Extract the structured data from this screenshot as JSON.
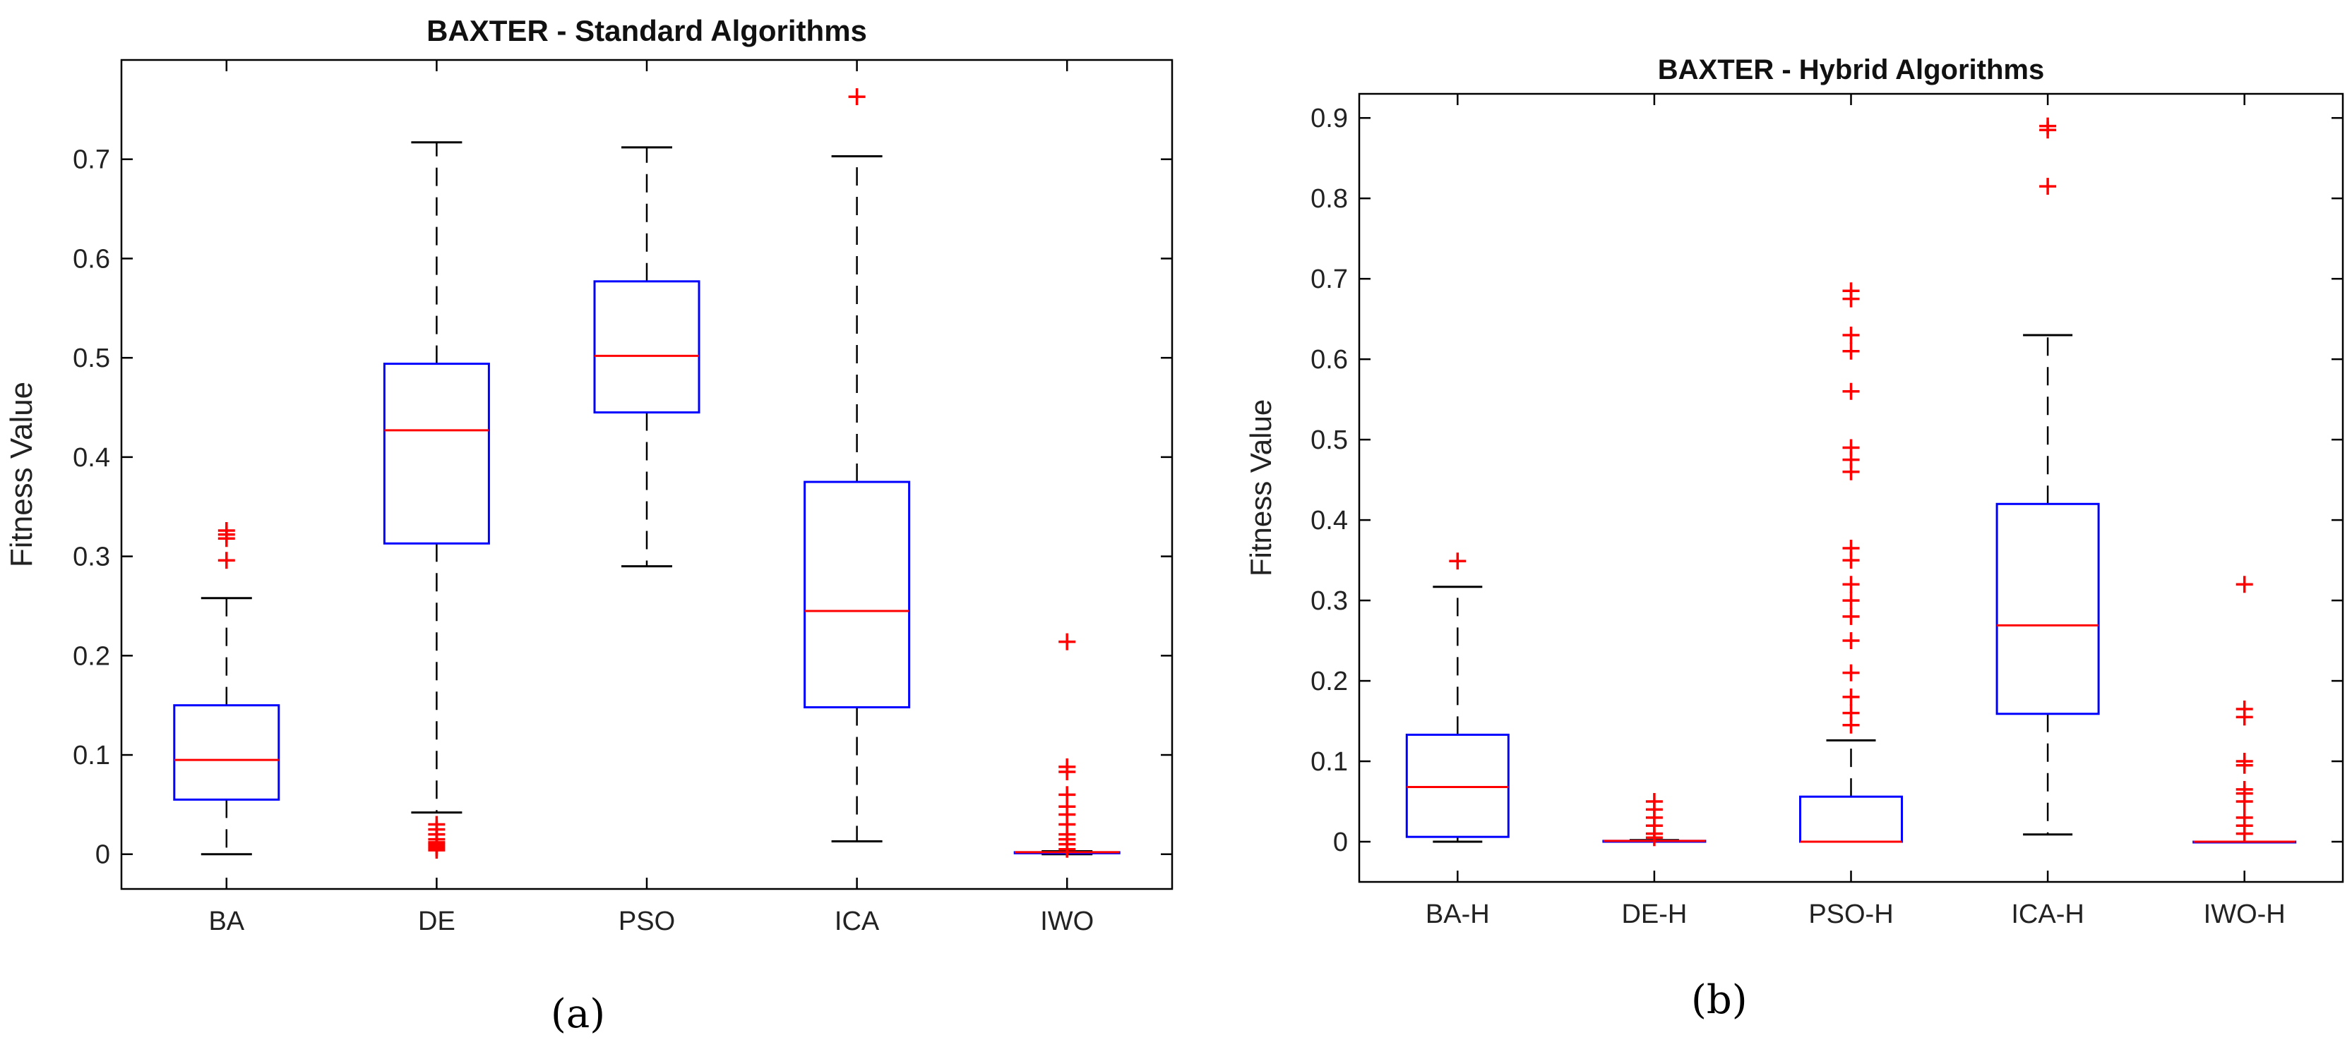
{
  "chart_data": [
    {
      "type": "boxplot",
      "title": "BAXTER - Standard Algorithms",
      "ylabel": "Fitness Value",
      "xlabel": "",
      "subfigure_label": "(a)",
      "ylim": [
        -0.035,
        0.8
      ],
      "yticks": [
        0,
        0.1,
        0.2,
        0.3,
        0.4,
        0.5,
        0.6,
        0.7
      ],
      "ytick_labels": [
        "0",
        "0.1",
        "0.2",
        "0.3",
        "0.4",
        "0.5",
        "0.6",
        "0.7"
      ],
      "categories": [
        "BA",
        "DE",
        "PSO",
        "ICA",
        "IWO"
      ],
      "boxes": [
        {
          "name": "BA",
          "whisker_low": 0.0,
          "q1": 0.055,
          "median": 0.095,
          "q3": 0.15,
          "whisker_high": 0.258,
          "outliers": [
            0.296,
            0.318,
            0.322,
            0.326
          ]
        },
        {
          "name": "DE",
          "whisker_low": 0.042,
          "q1": 0.313,
          "median": 0.427,
          "q3": 0.494,
          "whisker_high": 0.717,
          "outliers": [
            0.004,
            0.006,
            0.008,
            0.01,
            0.012,
            0.015,
            0.02,
            0.025,
            0.03
          ]
        },
        {
          "name": "PSO",
          "whisker_low": 0.29,
          "q1": 0.445,
          "median": 0.502,
          "q3": 0.577,
          "whisker_high": 0.712,
          "outliers": []
        },
        {
          "name": "ICA",
          "whisker_low": 0.013,
          "q1": 0.148,
          "median": 0.245,
          "q3": 0.375,
          "whisker_high": 0.703,
          "outliers": [
            0.763
          ]
        },
        {
          "name": "IWO",
          "whisker_low": 0.0,
          "q1": 0.001,
          "median": 0.002,
          "q3": 0.002,
          "whisker_high": 0.003,
          "outliers": [
            0.005,
            0.01,
            0.015,
            0.02,
            0.03,
            0.04,
            0.048,
            0.06,
            0.083,
            0.088,
            0.214
          ]
        }
      ]
    },
    {
      "type": "boxplot",
      "title": "BAXTER - Hybrid Algorithms",
      "ylabel": "Fitness Value",
      "xlabel": "",
      "subfigure_label": "(b)",
      "ylim": [
        -0.05,
        0.93
      ],
      "yticks": [
        0,
        0.1,
        0.2,
        0.3,
        0.4,
        0.5,
        0.6,
        0.7,
        0.8,
        0.9
      ],
      "ytick_labels": [
        "0",
        "0.1",
        "0.2",
        "0.3",
        "0.4",
        "0.5",
        "0.6",
        "0.7",
        "0.8",
        "0.9"
      ],
      "categories": [
        "BA-H",
        "DE-H",
        "PSO-H",
        "ICA-H",
        "IWO-H"
      ],
      "boxes": [
        {
          "name": "BA-H",
          "whisker_low": 0.0,
          "q1": 0.006,
          "median": 0.068,
          "q3": 0.133,
          "whisker_high": 0.317,
          "outliers": [
            0.349
          ]
        },
        {
          "name": "DE-H",
          "whisker_low": 0.0,
          "q1": 0.0,
          "median": 0.001,
          "q3": 0.001,
          "whisker_high": 0.002,
          "outliers": [
            0.005,
            0.01,
            0.02,
            0.03,
            0.04,
            0.05
          ]
        },
        {
          "name": "PSO-H",
          "whisker_low": 0.0,
          "q1": 0.0,
          "median": 0.0,
          "q3": 0.056,
          "whisker_high": 0.126,
          "outliers": [
            0.145,
            0.16,
            0.18,
            0.21,
            0.25,
            0.28,
            0.3,
            0.32,
            0.35,
            0.365,
            0.46,
            0.475,
            0.49,
            0.56,
            0.61,
            0.63,
            0.675,
            0.685
          ]
        },
        {
          "name": "ICA-H",
          "whisker_low": 0.009,
          "q1": 0.159,
          "median": 0.269,
          "q3": 0.42,
          "whisker_high": 0.63,
          "outliers": [
            0.815,
            0.885,
            0.89
          ]
        },
        {
          "name": "IWO-H",
          "whisker_low": 0.0,
          "q1": 0.0,
          "median": 0.0,
          "q3": 0.0,
          "whisker_high": 0.0,
          "outliers": [
            0.01,
            0.02,
            0.03,
            0.05,
            0.06,
            0.065,
            0.095,
            0.1,
            0.155,
            0.165,
            0.32
          ]
        }
      ]
    }
  ],
  "colors": {
    "box": "#0000ff",
    "median": "#ff0000",
    "outlier": "#ff0000",
    "whisker": "#000000",
    "axis": "#000000"
  }
}
